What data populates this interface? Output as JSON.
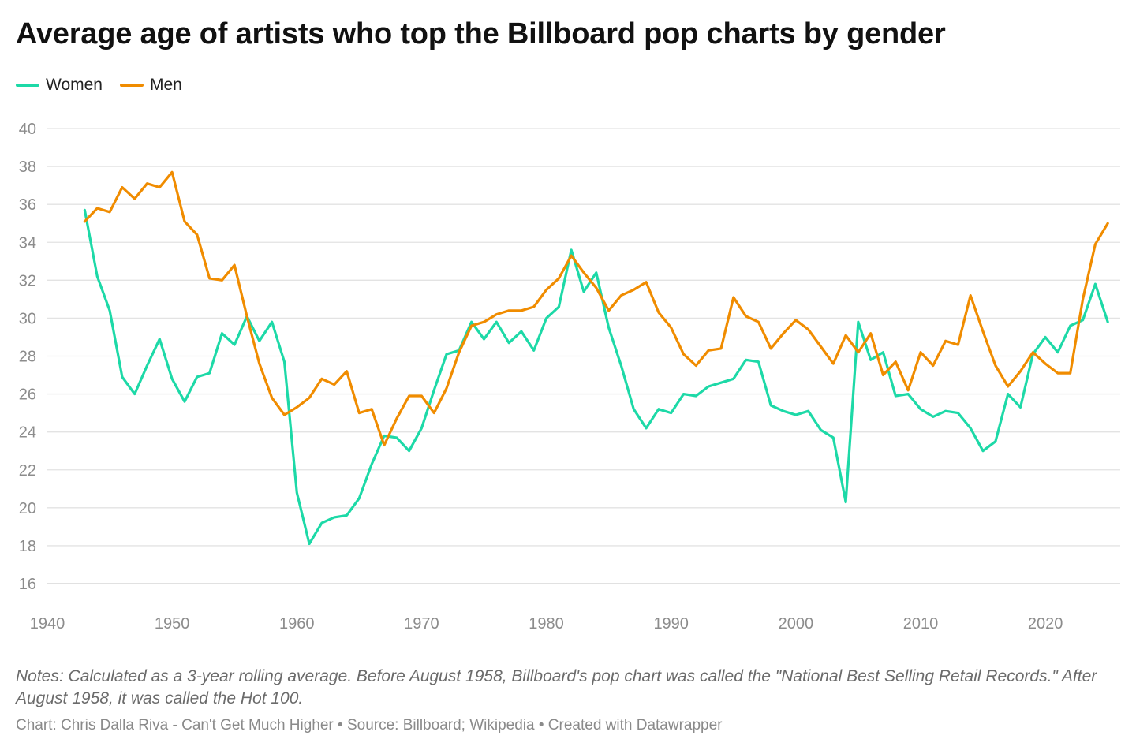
{
  "title": "Average age of artists who top the Billboard pop charts by gender",
  "legend": [
    {
      "label": "Women",
      "color": "#1dd9a7"
    },
    {
      "label": "Men",
      "color": "#f08c00"
    }
  ],
  "notes": "Notes: Calculated as a 3-year rolling average. Before August 1958, Billboard's pop chart was called the \"National Best Selling Retail Records.\" After August 1958, it was called the Hot 100.",
  "footer": "Chart: Chris Dalla Riva - Can't Get Much Higher • Source: Billboard; Wikipedia • Created with Datawrapper",
  "chart_data": {
    "type": "line",
    "title": "Average age of artists who top the Billboard pop charts by gender",
    "xlabel": "",
    "ylabel": "",
    "xlim": [
      1940,
      2026
    ],
    "ylim": [
      16,
      40
    ],
    "x_ticks": [
      1940,
      1950,
      1960,
      1970,
      1980,
      1990,
      2000,
      2010,
      2020
    ],
    "y_ticks": [
      16,
      18,
      20,
      22,
      24,
      26,
      28,
      30,
      32,
      34,
      36,
      38,
      40
    ],
    "grid": true,
    "legend_position": "top-left",
    "series": [
      {
        "name": "Women",
        "color": "#1dd9a7",
        "x": [
          1943,
          1944,
          1945,
          1946,
          1947,
          1948,
          1949,
          1950,
          1951,
          1952,
          1953,
          1954,
          1955,
          1956,
          1957,
          1958,
          1959,
          1960,
          1961,
          1962,
          1963,
          1964,
          1965,
          1966,
          1967,
          1968,
          1969,
          1970,
          1971,
          1972,
          1973,
          1974,
          1975,
          1976,
          1977,
          1978,
          1979,
          1980,
          1981,
          1982,
          1983,
          1984,
          1985,
          1986,
          1987,
          1988,
          1989,
          1990,
          1991,
          1992,
          1993,
          1994,
          1995,
          1996,
          1997,
          1998,
          1999,
          2000,
          2001,
          2002,
          2003,
          2004,
          2005,
          2006,
          2007,
          2008,
          2009,
          2010,
          2011,
          2012,
          2013,
          2014,
          2015,
          2016,
          2017,
          2018,
          2019,
          2020,
          2021,
          2022,
          2023,
          2024,
          2025
        ],
        "values": [
          35.7,
          32.2,
          30.4,
          26.9,
          26.0,
          27.5,
          28.9,
          26.8,
          25.6,
          26.9,
          27.1,
          29.2,
          28.6,
          30.1,
          28.8,
          29.8,
          27.7,
          20.8,
          18.1,
          19.2,
          19.5,
          19.6,
          20.5,
          22.3,
          23.8,
          23.7,
          23.0,
          24.2,
          26.2,
          28.1,
          28.3,
          29.8,
          28.9,
          29.8,
          28.7,
          29.3,
          28.3,
          30.0,
          30.6,
          33.6,
          31.4,
          32.4,
          29.5,
          27.5,
          25.2,
          24.2,
          25.2,
          25.0,
          26.0,
          25.9,
          26.4,
          26.6,
          26.8,
          27.8,
          27.7,
          25.4,
          25.1,
          24.9,
          25.1,
          24.1,
          23.7,
          20.3,
          29.8,
          27.8,
          28.2,
          25.9,
          26.0,
          25.2,
          24.8,
          25.1,
          25.0,
          24.2,
          23.0,
          23.5,
          26.0,
          25.3,
          28.1,
          29.0,
          28.2,
          29.6,
          29.9,
          31.8,
          29.8
        ]
      },
      {
        "name": "Men",
        "color": "#f08c00",
        "x": [
          1943,
          1944,
          1945,
          1946,
          1947,
          1948,
          1949,
          1950,
          1951,
          1952,
          1953,
          1954,
          1955,
          1956,
          1957,
          1958,
          1959,
          1960,
          1961,
          1962,
          1963,
          1964,
          1965,
          1966,
          1967,
          1968,
          1969,
          1970,
          1971,
          1972,
          1973,
          1974,
          1975,
          1976,
          1977,
          1978,
          1979,
          1980,
          1981,
          1982,
          1983,
          1984,
          1985,
          1986,
          1987,
          1988,
          1989,
          1990,
          1991,
          1992,
          1993,
          1994,
          1995,
          1996,
          1997,
          1998,
          1999,
          2000,
          2001,
          2002,
          2003,
          2004,
          2005,
          2006,
          2007,
          2008,
          2009,
          2010,
          2011,
          2012,
          2013,
          2014,
          2015,
          2016,
          2017,
          2018,
          2019,
          2020,
          2021,
          2022,
          2023,
          2024,
          2025
        ],
        "values": [
          35.1,
          35.8,
          35.6,
          36.9,
          36.3,
          37.1,
          36.9,
          37.7,
          35.1,
          34.4,
          32.1,
          32.0,
          32.8,
          30.1,
          27.6,
          25.8,
          24.9,
          25.3,
          25.8,
          26.8,
          26.5,
          27.2,
          25.0,
          25.2,
          23.3,
          24.7,
          25.9,
          25.9,
          25.0,
          26.3,
          28.2,
          29.6,
          29.8,
          30.2,
          30.4,
          30.4,
          30.6,
          31.5,
          32.1,
          33.3,
          32.4,
          31.6,
          30.4,
          31.2,
          31.5,
          31.9,
          30.3,
          29.5,
          28.1,
          27.5,
          28.3,
          28.4,
          31.1,
          30.1,
          29.8,
          28.4,
          29.2,
          29.9,
          29.4,
          28.5,
          27.6,
          29.1,
          28.2,
          29.2,
          27.0,
          27.7,
          26.2,
          28.2,
          27.5,
          28.8,
          28.6,
          31.2,
          29.3,
          27.5,
          26.4,
          27.2,
          28.2,
          27.6,
          27.1,
          27.1,
          31.0,
          33.9,
          35.0
        ]
      }
    ]
  }
}
